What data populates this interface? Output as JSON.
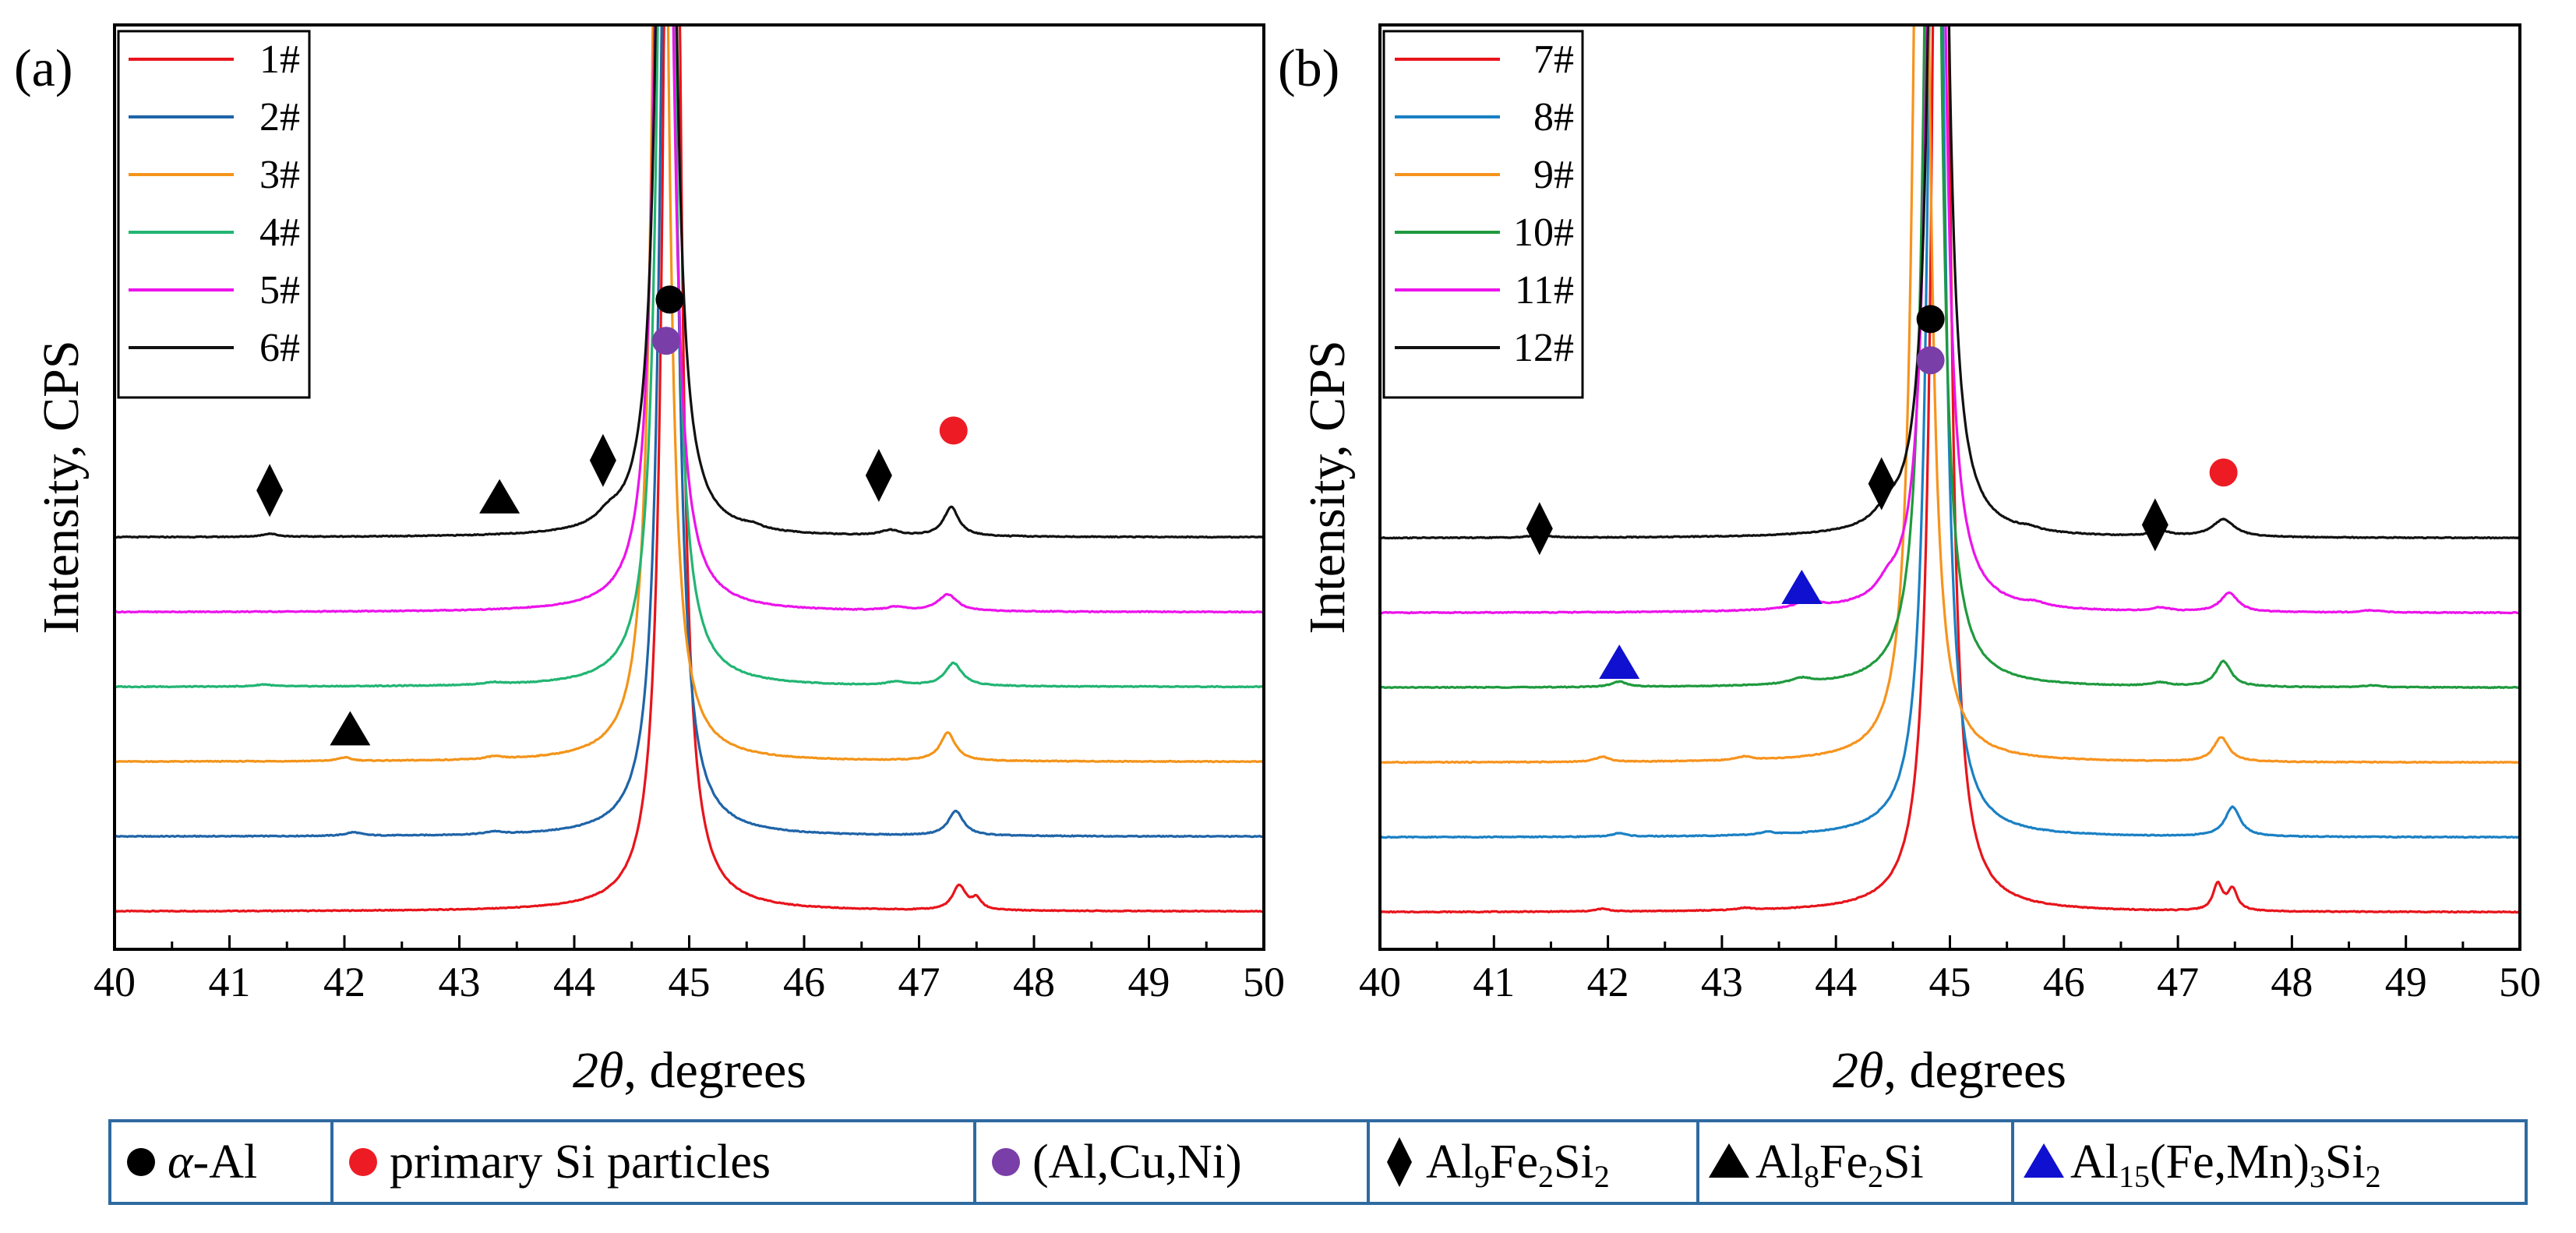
{
  "chart_data": [
    {
      "panel_label": "(a)",
      "type": "line",
      "xlabel_italic": "2θ",
      "xlabel_rest": ", degrees",
      "ylabel": "Intensity, CPS",
      "xlim": [
        40,
        50
      ],
      "x_ticks": [
        "40",
        "41",
        "42",
        "43",
        "44",
        "45",
        "46",
        "47",
        "48",
        "49",
        "50"
      ],
      "y_ticks_shown": false,
      "curves_offset_vertically": true,
      "grid": false,
      "legend_placement": "top-left",
      "series": [
        {
          "name": "1#",
          "color": "#e8141b",
          "offset": 0,
          "baseline": [
            0.2,
            0.2,
            0.2,
            0.2,
            0.2,
            0.2,
            0.2,
            0.2,
            0.2,
            0.2,
            0.2
          ],
          "peaks": [
            {
              "x": 44.85,
              "h": 120,
              "w": 0.06
            },
            {
              "x": 47.35,
              "h": 1.4,
              "w": 0.07
            },
            {
              "x": 47.5,
              "h": 0.6,
              "w": 0.05
            }
          ]
        },
        {
          "name": "2#",
          "color": "#1f64a8",
          "offset": 1,
          "baseline": [
            0.2,
            0.2,
            0.2,
            0.2,
            0.2,
            0.2,
            0.2,
            0.2,
            0.2,
            0.2,
            0.2
          ],
          "peaks": [
            {
              "x": 42.08,
              "h": 0.2,
              "w": 0.08
            },
            {
              "x": 43.3,
              "h": 0.15,
              "w": 0.08
            },
            {
              "x": 44.82,
              "h": 80,
              "w": 0.07
            },
            {
              "x": 47.32,
              "h": 1.4,
              "w": 0.08
            }
          ]
        },
        {
          "name": "3#",
          "color": "#f39419",
          "offset": 2,
          "baseline": [
            0.2,
            0.2,
            0.2,
            0.2,
            0.2,
            0.2,
            0.2,
            0.2,
            0.2,
            0.2,
            0.2
          ],
          "peaks": [
            {
              "x": 42.0,
              "h": 0.2,
              "w": 0.07
            },
            {
              "x": 43.3,
              "h": 0.15,
              "w": 0.08
            },
            {
              "x": 44.75,
              "h": 80,
              "w": 0.07
            },
            {
              "x": 47.25,
              "h": 1.6,
              "w": 0.08
            }
          ]
        },
        {
          "name": "4#",
          "color": "#22b573",
          "offset": 3,
          "baseline": [
            0.2,
            0.2,
            0.2,
            0.2,
            0.2,
            0.2,
            0.2,
            0.2,
            0.2,
            0.2,
            0.2
          ],
          "peaks": [
            {
              "x": 41.3,
              "h": 0.12,
              "w": 0.08
            },
            {
              "x": 43.3,
              "h": 0.12,
              "w": 0.1
            },
            {
              "x": 44.8,
              "h": 80,
              "w": 0.07
            },
            {
              "x": 46.8,
              "h": 0.2,
              "w": 0.1
            },
            {
              "x": 47.3,
              "h": 1.3,
              "w": 0.09
            }
          ]
        },
        {
          "name": "5#",
          "color": "#ec13eb",
          "offset": 4,
          "baseline": [
            0.2,
            0.2,
            0.2,
            0.2,
            0.2,
            0.2,
            0.2,
            0.2,
            0.2,
            0.2,
            0.2
          ],
          "peaks": [
            {
              "x": 44.78,
              "h": 80,
              "w": 0.07
            },
            {
              "x": 46.8,
              "h": 0.2,
              "w": 0.1
            },
            {
              "x": 47.25,
              "h": 0.95,
              "w": 0.1
            }
          ]
        },
        {
          "name": "6#",
          "color": "#111111",
          "offset": 5,
          "baseline": [
            0.2,
            0.2,
            0.2,
            0.2,
            0.2,
            0.2,
            0.2,
            0.2,
            0.2,
            0.2,
            0.2
          ],
          "peaks": [
            {
              "x": 41.35,
              "h": 0.18,
              "w": 0.08
            },
            {
              "x": 44.3,
              "h": 0.55,
              "w": 0.12
            },
            {
              "x": 44.8,
              "h": 80,
              "w": 0.07
            },
            {
              "x": 45.55,
              "h": 0.2,
              "w": 0.1
            },
            {
              "x": 46.75,
              "h": 0.3,
              "w": 0.1
            },
            {
              "x": 47.28,
              "h": 1.65,
              "w": 0.08
            }
          ]
        }
      ],
      "markers": [
        {
          "phase": "α-Al",
          "shape": "circle",
          "color": "#000000",
          "x": 44.83,
          "level": 8.1
        },
        {
          "phase": "(Al,Cu,Ni)",
          "shape": "circle",
          "color": "#7a3ea8",
          "x": 44.8,
          "level": 7.55
        },
        {
          "phase": "primary Si particles",
          "shape": "circle",
          "color": "#ed1c24",
          "x": 47.3,
          "level": 6.35
        },
        {
          "phase": "Al9Fe2Si2",
          "shape": "diamond",
          "color": "#000000",
          "x": 41.35,
          "level": 5.55
        },
        {
          "phase": "Al9Fe2Si2",
          "shape": "diamond",
          "color": "#000000",
          "x": 44.25,
          "level": 5.95
        },
        {
          "phase": "Al9Fe2Si2",
          "shape": "diamond",
          "color": "#000000",
          "x": 46.65,
          "level": 5.75
        },
        {
          "phase": "Al8Fe2Si",
          "shape": "triangle",
          "color": "#000000",
          "x": 43.35,
          "level": 5.45
        },
        {
          "phase": "Al8Fe2Si",
          "shape": "triangle",
          "color": "#000000",
          "x": 42.05,
          "level": 2.35
        }
      ]
    },
    {
      "panel_label": "(b)",
      "type": "line",
      "xlabel_italic": "2θ",
      "xlabel_rest": ", degrees",
      "ylabel": "Intensity, CPS",
      "xlim": [
        40,
        50
      ],
      "x_ticks": [
        "40",
        "41",
        "42",
        "43",
        "44",
        "45",
        "46",
        "47",
        "48",
        "49",
        "50"
      ],
      "y_ticks_shown": false,
      "curves_offset_vertically": true,
      "grid": false,
      "legend_placement": "top-left",
      "series": [
        {
          "name": "7#",
          "color": "#e8141b",
          "offset": 0,
          "baseline": [
            0.2,
            0.2,
            0.2,
            0.2,
            0.2,
            0.2,
            0.2,
            0.2,
            0.2,
            0.2,
            0.2
          ],
          "peaks": [
            {
              "x": 41.95,
              "h": 0.15,
              "w": 0.07
            },
            {
              "x": 43.2,
              "h": 0.12,
              "w": 0.08
            },
            {
              "x": 44.92,
              "h": 120,
              "w": 0.06
            },
            {
              "x": 47.35,
              "h": 1.5,
              "w": 0.05
            },
            {
              "x": 47.48,
              "h": 1.2,
              "w": 0.05
            }
          ]
        },
        {
          "name": "8#",
          "color": "#1a80c4",
          "offset": 1,
          "baseline": [
            0.2,
            0.2,
            0.2,
            0.2,
            0.2,
            0.2,
            0.2,
            0.2,
            0.2,
            0.2,
            0.2
          ],
          "peaks": [
            {
              "x": 42.1,
              "h": 0.2,
              "w": 0.07
            },
            {
              "x": 43.4,
              "h": 0.15,
              "w": 0.08
            },
            {
              "x": 44.88,
              "h": 80,
              "w": 0.07
            },
            {
              "x": 47.48,
              "h": 1.7,
              "w": 0.08
            }
          ]
        },
        {
          "name": "9#",
          "color": "#f7931e",
          "offset": 2,
          "baseline": [
            0.2,
            0.2,
            0.2,
            0.2,
            0.2,
            0.2,
            0.2,
            0.2,
            0.2,
            0.2,
            0.2
          ],
          "peaks": [
            {
              "x": 41.95,
              "h": 0.3,
              "w": 0.07
            },
            {
              "x": 43.2,
              "h": 0.2,
              "w": 0.08
            },
            {
              "x": 44.75,
              "h": 80,
              "w": 0.07
            },
            {
              "x": 47.38,
              "h": 1.4,
              "w": 0.08
            }
          ]
        },
        {
          "name": "10#",
          "color": "#1f9a3e",
          "offset": 3,
          "baseline": [
            0.2,
            0.2,
            0.2,
            0.2,
            0.2,
            0.2,
            0.2,
            0.2,
            0.2,
            0.2,
            0.2
          ],
          "peaks": [
            {
              "x": 42.1,
              "h": 0.3,
              "w": 0.08
            },
            {
              "x": 43.7,
              "h": 0.3,
              "w": 0.12
            },
            {
              "x": 44.85,
              "h": 80,
              "w": 0.07
            },
            {
              "x": 46.85,
              "h": 0.2,
              "w": 0.1
            },
            {
              "x": 47.4,
              "h": 1.45,
              "w": 0.08
            },
            {
              "x": 48.7,
              "h": 0.1,
              "w": 0.1
            }
          ]
        },
        {
          "name": "11#",
          "color": "#ec13eb",
          "offset": 4,
          "baseline": [
            0.2,
            0.2,
            0.2,
            0.2,
            0.2,
            0.2,
            0.2,
            0.2,
            0.2,
            0.2,
            0.2
          ],
          "peaks": [
            {
              "x": 43.75,
              "h": 0.45,
              "w": 0.12
            },
            {
              "x": 44.45,
              "h": 0.6,
              "w": 0.1
            },
            {
              "x": 44.88,
              "h": 80,
              "w": 0.07
            },
            {
              "x": 45.75,
              "h": 0.2,
              "w": 0.1
            },
            {
              "x": 46.85,
              "h": 0.2,
              "w": 0.1
            },
            {
              "x": 47.45,
              "h": 1.1,
              "w": 0.09
            },
            {
              "x": 48.7,
              "h": 0.12,
              "w": 0.1
            }
          ]
        },
        {
          "name": "12#",
          "color": "#111111",
          "offset": 5,
          "baseline": [
            0.2,
            0.2,
            0.2,
            0.2,
            0.2,
            0.2,
            0.2,
            0.2,
            0.2,
            0.2,
            0.2
          ],
          "peaks": [
            {
              "x": 41.4,
              "h": 0.2,
              "w": 0.08
            },
            {
              "x": 44.45,
              "h": 0.7,
              "w": 0.12
            },
            {
              "x": 44.9,
              "h": 80,
              "w": 0.07
            },
            {
              "x": 45.7,
              "h": 0.15,
              "w": 0.1
            },
            {
              "x": 46.85,
              "h": 0.3,
              "w": 0.1
            },
            {
              "x": 47.4,
              "h": 1.0,
              "w": 0.12
            }
          ]
        }
      ],
      "markers": [
        {
          "phase": "α-Al",
          "shape": "circle",
          "color": "#000000",
          "x": 44.83,
          "level": 7.85
        },
        {
          "phase": "(Al,Cu,Ni)",
          "shape": "circle",
          "color": "#7a3ea8",
          "x": 44.83,
          "level": 7.3
        },
        {
          "phase": "primary Si particles",
          "shape": "circle",
          "color": "#ed1c24",
          "x": 47.4,
          "level": 5.8
        },
        {
          "phase": "Al9Fe2Si2",
          "shape": "diamond",
          "color": "#000000",
          "x": 41.4,
          "level": 5.05
        },
        {
          "phase": "Al9Fe2Si2",
          "shape": "diamond",
          "color": "#000000",
          "x": 44.4,
          "level": 5.65
        },
        {
          "phase": "Al9Fe2Si2",
          "shape": "diamond",
          "color": "#000000",
          "x": 46.8,
          "level": 5.1
        },
        {
          "phase": "Al15(Fe,Mn)3Si2",
          "shape": "triangle",
          "color": "#1010d0",
          "x": 43.7,
          "level": 4.25
        },
        {
          "phase": "Al15(Fe,Mn)3Si2",
          "shape": "triangle",
          "color": "#1010d0",
          "x": 42.1,
          "level": 3.25
        }
      ]
    }
  ],
  "phase_legend": [
    {
      "symbol": "circle",
      "color": "#000000",
      "label_italic": "α",
      "label_rest": "-Al"
    },
    {
      "symbol": "circle",
      "color": "#ed1c24",
      "label_italic": "",
      "label_rest": "primary Si particles"
    },
    {
      "symbol": "circle",
      "color": "#7a3ea8",
      "label_italic": "",
      "label_rest": "(Al,Cu,Ni)"
    },
    {
      "symbol": "diamond",
      "color": "#000000",
      "parts": [
        [
          "Al",
          ""
        ],
        [
          "9",
          "sub"
        ],
        [
          "Fe",
          ""
        ],
        [
          "2",
          "sub"
        ],
        [
          "Si",
          ""
        ],
        [
          "2",
          "sub"
        ]
      ]
    },
    {
      "symbol": "triangle",
      "color": "#000000",
      "parts": [
        [
          "Al",
          ""
        ],
        [
          "8",
          "sub"
        ],
        [
          "Fe",
          ""
        ],
        [
          "2",
          "sub"
        ],
        [
          "Si",
          ""
        ]
      ]
    },
    {
      "symbol": "triangle",
      "color": "#1010d0",
      "parts": [
        [
          "Al",
          ""
        ],
        [
          "15",
          "sub"
        ],
        [
          "(Fe,Mn)",
          ""
        ],
        [
          "3",
          "sub"
        ],
        [
          "Si",
          ""
        ],
        [
          "2",
          "sub"
        ]
      ]
    }
  ],
  "style": {
    "axis_color": "#000000",
    "legend_border": "#2e6aa0"
  }
}
